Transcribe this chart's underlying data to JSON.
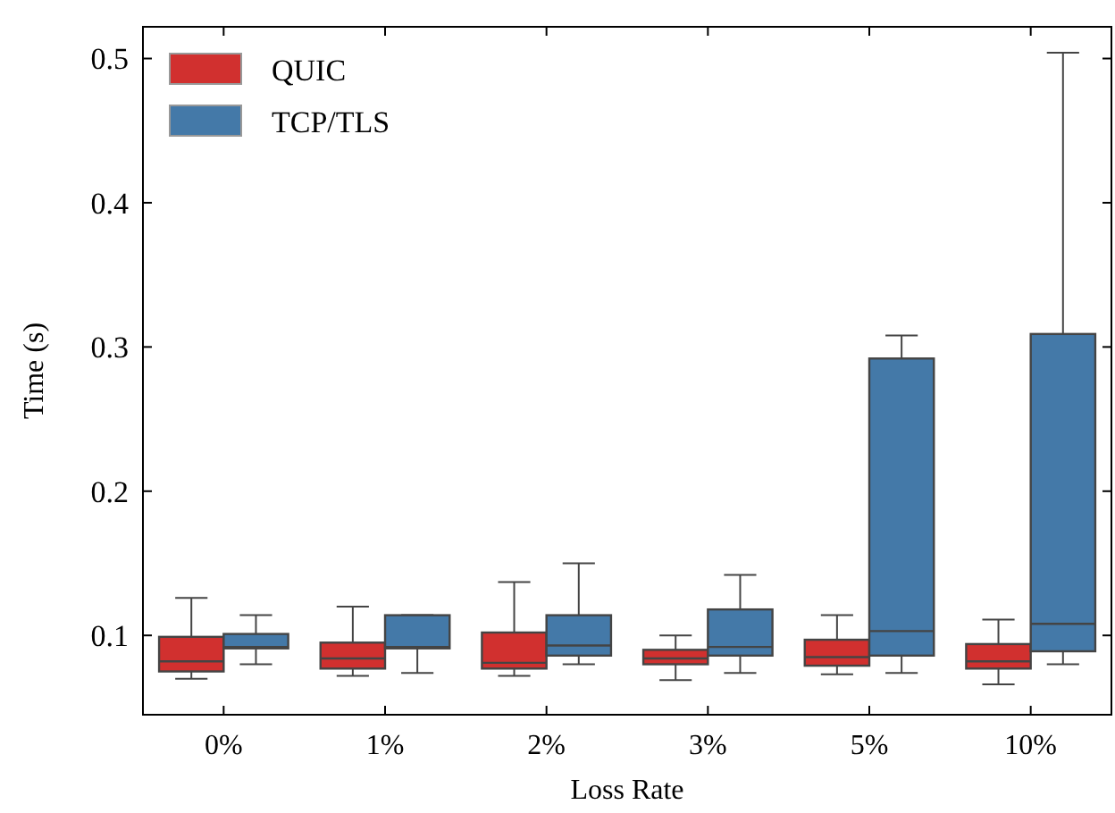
{
  "chart_data": {
    "type": "box",
    "xlabel": "Loss Rate",
    "ylabel": "Time (s)",
    "categories": [
      "0%",
      "1%",
      "2%",
      "3%",
      "5%",
      "10%"
    ],
    "ylim": [
      0.045,
      0.522
    ],
    "yticks": [
      0.1,
      0.2,
      0.3,
      0.4,
      0.5
    ],
    "legend": "top left",
    "grid": false,
    "series": [
      {
        "name": "QUIC",
        "color": "#d1302f",
        "boxes": [
          {
            "low": 0.07,
            "q1": 0.075,
            "median": 0.082,
            "q3": 0.099,
            "high": 0.126
          },
          {
            "low": 0.072,
            "q1": 0.077,
            "median": 0.084,
            "q3": 0.095,
            "high": 0.12
          },
          {
            "low": 0.072,
            "q1": 0.077,
            "median": 0.081,
            "q3": 0.102,
            "high": 0.137
          },
          {
            "low": 0.069,
            "q1": 0.08,
            "median": 0.084,
            "q3": 0.09,
            "high": 0.1
          },
          {
            "low": 0.073,
            "q1": 0.079,
            "median": 0.085,
            "q3": 0.097,
            "high": 0.114
          },
          {
            "low": 0.066,
            "q1": 0.077,
            "median": 0.082,
            "q3": 0.094,
            "high": 0.111
          }
        ]
      },
      {
        "name": "TCP/TLS",
        "color": "#4479a8",
        "boxes": [
          {
            "low": 0.08,
            "q1": 0.091,
            "median": 0.092,
            "q3": 0.101,
            "high": 0.114
          },
          {
            "low": 0.074,
            "q1": 0.091,
            "median": 0.092,
            "q3": 0.114,
            "high": 0.114
          },
          {
            "low": 0.08,
            "q1": 0.086,
            "median": 0.093,
            "q3": 0.114,
            "high": 0.15
          },
          {
            "low": 0.074,
            "q1": 0.086,
            "median": 0.092,
            "q3": 0.118,
            "high": 0.142
          },
          {
            "low": 0.074,
            "q1": 0.086,
            "median": 0.103,
            "q3": 0.292,
            "high": 0.308
          },
          {
            "low": 0.08,
            "q1": 0.089,
            "median": 0.108,
            "q3": 0.309,
            "high": 0.504
          }
        ]
      }
    ]
  }
}
